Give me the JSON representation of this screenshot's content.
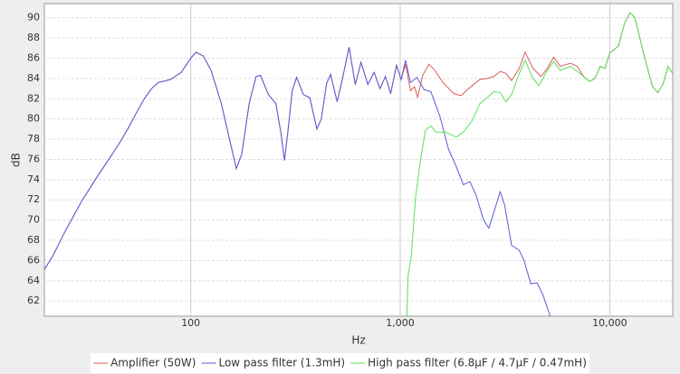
{
  "chart_data": {
    "type": "line",
    "x_label": "Hz",
    "y_label": "dB",
    "x_log": true,
    "grid": true,
    "xlim": [
      20,
      20000
    ],
    "ylim": [
      60.5,
      91.4
    ],
    "xticks": [
      100,
      {
        "value": 1000,
        "label": "1,000"
      },
      {
        "value": 10000,
        "label": "10,000"
      }
    ],
    "yticks": [
      62,
      64,
      66,
      68,
      70,
      72,
      74,
      76,
      78,
      80,
      82,
      84,
      86,
      88,
      90
    ],
    "series": [
      {
        "name": "Amplifier (50W)",
        "color": "#dd5a5a",
        "x": [
          20,
          22,
          25,
          30,
          35,
          40,
          45,
          50,
          55,
          60,
          65,
          70,
          80,
          90,
          100,
          106,
          115,
          125,
          140,
          155,
          165,
          175,
          190,
          205,
          215,
          235,
          255,
          270,
          280,
          290,
          305,
          320,
          345,
          370,
          400,
          420,
          445,
          465,
          500,
          530,
          570,
          610,
          650,
          700,
          750,
          800,
          850,
          900,
          960,
          1010,
          1060,
          1120,
          1170,
          1210,
          1280,
          1370,
          1450,
          1600,
          1800,
          1950,
          2150,
          2400,
          2600,
          2800,
          3000,
          3200,
          3400,
          3700,
          3950,
          4300,
          4700,
          5000,
          5400,
          5800,
          6500,
          7000,
          7500,
          8000,
          8500,
          9000,
          9500,
          10000,
          11000,
          11800,
          12500,
          13200,
          14500,
          16000,
          17000,
          18000,
          19000,
          20000
        ],
        "values": [
          65.1,
          66.5,
          68.8,
          71.8,
          74,
          75.8,
          77.4,
          79,
          80.6,
          82,
          83,
          83.6,
          83.9,
          84.6,
          86,
          86.6,
          86.2,
          84.8,
          81.5,
          77.5,
          75.1,
          76.5,
          81.5,
          84.2,
          84.3,
          82.4,
          81.5,
          78.5,
          75.9,
          78.5,
          82.8,
          84.1,
          82.4,
          82.1,
          79,
          80,
          83.5,
          84.4,
          81.7,
          84,
          87.1,
          83.4,
          85.6,
          83.4,
          84.6,
          83,
          84.2,
          82.5,
          85.3,
          83.9,
          85.4,
          82.8,
          83.2,
          82.1,
          84.3,
          85.4,
          84.9,
          83.6,
          82.5,
          82.3,
          83.1,
          83.9,
          84,
          84.2,
          84.7,
          84.5,
          83.8,
          85,
          86.6,
          85,
          84.2,
          84.9,
          86.1,
          85.2,
          85.5,
          85.2,
          84.2,
          83.7,
          84,
          85.2,
          85,
          86.5,
          87.2,
          89.5,
          90.5,
          90,
          86.5,
          83.2,
          82.6,
          83.5,
          85.2,
          84.5
        ]
      },
      {
        "name": "Low pass filter (1.3mH)",
        "color": "#5a5add",
        "x": [
          20,
          22,
          25,
          30,
          35,
          40,
          45,
          50,
          55,
          60,
          65,
          70,
          80,
          90,
          100,
          106,
          115,
          125,
          140,
          155,
          165,
          175,
          190,
          205,
          215,
          235,
          255,
          270,
          280,
          290,
          305,
          320,
          345,
          370,
          400,
          420,
          445,
          465,
          500,
          530,
          570,
          610,
          650,
          700,
          750,
          800,
          850,
          900,
          960,
          1010,
          1060,
          1120,
          1200,
          1300,
          1400,
          1550,
          1700,
          1850,
          2000,
          2150,
          2300,
          2500,
          2650,
          2800,
          3000,
          3150,
          3400,
          3700,
          3900,
          4200,
          4500,
          4800,
          5200
        ],
        "values": [
          65.1,
          66.5,
          68.8,
          71.8,
          74,
          75.8,
          77.4,
          79,
          80.6,
          82,
          83,
          83.6,
          83.9,
          84.6,
          86,
          86.6,
          86.2,
          84.8,
          81.5,
          77.5,
          75.1,
          76.5,
          81.5,
          84.2,
          84.3,
          82.4,
          81.5,
          78.5,
          75.9,
          78.5,
          82.8,
          84.1,
          82.4,
          82.1,
          79,
          80,
          83.5,
          84.4,
          81.7,
          84,
          87.1,
          83.4,
          85.6,
          83.4,
          84.6,
          83,
          84.2,
          82.5,
          85.3,
          83.9,
          85.8,
          83.6,
          84.1,
          82.9,
          82.7,
          80.2,
          77,
          75.3,
          73.5,
          73.8,
          72.5,
          70,
          69.2,
          70.8,
          72.8,
          71.5,
          67.5,
          67,
          66,
          63.7,
          63.8,
          62.6,
          60.5
        ]
      },
      {
        "name": "High pass filter (6.8µF / 4.7µF / 0.47mH)",
        "color": "#5ae05a",
        "x": [
          1075,
          1090,
          1130,
          1180,
          1250,
          1320,
          1400,
          1480,
          1650,
          1850,
          2000,
          2200,
          2400,
          2600,
          2800,
          3000,
          3200,
          3400,
          3700,
          3950,
          4300,
          4600,
          5000,
          5400,
          5800,
          6500,
          7000,
          7500,
          8000,
          8500,
          9000,
          9500,
          10000,
          11000,
          11800,
          12500,
          13200,
          14500,
          16000,
          17000,
          18000,
          19000,
          20000
        ],
        "values": [
          60.5,
          64.5,
          66.5,
          72,
          76,
          78.9,
          79.3,
          78.7,
          78.7,
          78.2,
          78.7,
          79.8,
          81.5,
          82.1,
          82.7,
          82.6,
          81.7,
          82.4,
          84.5,
          85.8,
          84,
          83.3,
          84.7,
          85.7,
          84.8,
          85.2,
          84.7,
          84.2,
          83.7,
          84,
          85.2,
          85,
          86.5,
          87.2,
          89.5,
          90.5,
          90,
          86.5,
          83.2,
          82.6,
          83.5,
          85.2,
          84.5
        ]
      }
    ]
  }
}
